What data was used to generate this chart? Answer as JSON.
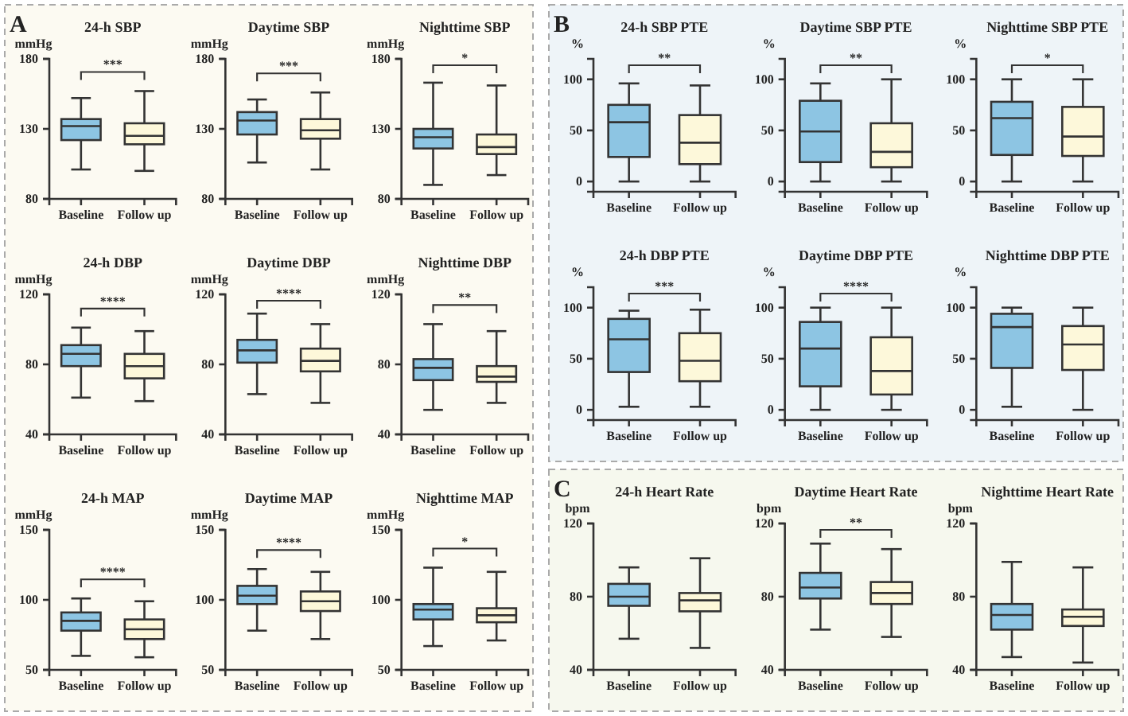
{
  "chart_data": [
    {
      "type": "box",
      "title": "24-h SBP",
      "ylabel": "mmHg",
      "categories": [
        "Baseline",
        "Follow up"
      ],
      "colors": [
        "#8dc5e3",
        "#fdf8da"
      ],
      "ylim": [
        80,
        180
      ],
      "yticks": [
        80,
        130,
        180
      ],
      "annotations": [
        "A",
        "***"
      ],
      "boxes": [
        {
          "low": 101,
          "q1": 122,
          "median": 132,
          "q3": 137,
          "high": 152
        },
        {
          "low": 100,
          "q1": 119,
          "median": 125,
          "q3": 134,
          "high": 157
        }
      ]
    },
    {
      "type": "box",
      "title": "Daytime SBP",
      "ylabel": "mmHg",
      "categories": [
        "Baseline",
        "Follow up"
      ],
      "colors": [
        "#8dc5e3",
        "#fdf8da"
      ],
      "ylim": [
        80,
        180
      ],
      "yticks": [
        80,
        130,
        180
      ],
      "annotations": [
        "***"
      ],
      "boxes": [
        {
          "low": 106,
          "q1": 126,
          "median": 136,
          "q3": 142,
          "high": 151
        },
        {
          "low": 101,
          "q1": 123,
          "median": 129,
          "q3": 137,
          "high": 156
        }
      ]
    },
    {
      "type": "box",
      "title": "Nighttime SBP",
      "ylabel": "mmHg",
      "categories": [
        "Baseline",
        "Follow up"
      ],
      "colors": [
        "#8dc5e3",
        "#fdf8da"
      ],
      "ylim": [
        80,
        180
      ],
      "yticks": [
        80,
        130,
        180
      ],
      "annotations": [
        "*"
      ],
      "boxes": [
        {
          "low": 90,
          "q1": 116,
          "median": 124,
          "q3": 130,
          "high": 163
        },
        {
          "low": 97,
          "q1": 112,
          "median": 117,
          "q3": 126,
          "high": 161
        }
      ]
    },
    {
      "type": "box",
      "title": "24-h DBP",
      "ylabel": "mmHg",
      "categories": [
        "Baseline",
        "Follow up"
      ],
      "colors": [
        "#8dc5e3",
        "#fdf8da"
      ],
      "ylim": [
        40,
        120
      ],
      "yticks": [
        40,
        80,
        120
      ],
      "annotations": [
        "****"
      ],
      "boxes": [
        {
          "low": 61,
          "q1": 79,
          "median": 86,
          "q3": 91,
          "high": 101
        },
        {
          "low": 59,
          "q1": 72,
          "median": 79,
          "q3": 86,
          "high": 99
        }
      ]
    },
    {
      "type": "box",
      "title": "Daytime DBP",
      "ylabel": "mmHg",
      "categories": [
        "Baseline",
        "Follow up"
      ],
      "colors": [
        "#8dc5e3",
        "#fdf8da"
      ],
      "ylim": [
        40,
        120
      ],
      "yticks": [
        40,
        80,
        120
      ],
      "annotations": [
        "****"
      ],
      "boxes": [
        {
          "low": 63,
          "q1": 81,
          "median": 88,
          "q3": 94,
          "high": 109
        },
        {
          "low": 58,
          "q1": 76,
          "median": 82,
          "q3": 89,
          "high": 103
        }
      ]
    },
    {
      "type": "box",
      "title": "Nighttime DBP",
      "ylabel": "mmHg",
      "categories": [
        "Baseline",
        "Follow up"
      ],
      "colors": [
        "#8dc5e3",
        "#fdf8da"
      ],
      "ylim": [
        40,
        120
      ],
      "yticks": [
        40,
        80,
        120
      ],
      "annotations": [
        "**"
      ],
      "boxes": [
        {
          "low": 54,
          "q1": 71,
          "median": 78,
          "q3": 83,
          "high": 103
        },
        {
          "low": 58,
          "q1": 70,
          "median": 73,
          "q3": 79,
          "high": 99
        }
      ]
    },
    {
      "type": "box",
      "title": "24-h MAP",
      "ylabel": "mmHg",
      "categories": [
        "Baseline",
        "Follow up"
      ],
      "colors": [
        "#8dc5e3",
        "#fdf8da"
      ],
      "ylim": [
        50,
        150
      ],
      "yticks": [
        50,
        100,
        150
      ],
      "annotations": [
        "****"
      ],
      "boxes": [
        {
          "low": 60,
          "q1": 78,
          "median": 85,
          "q3": 91,
          "high": 101
        },
        {
          "low": 59,
          "q1": 72,
          "median": 79,
          "q3": 86,
          "high": 99
        }
      ]
    },
    {
      "type": "box",
      "title": "Daytime MAP",
      "ylabel": "mmHg",
      "categories": [
        "Baseline",
        "Follow up"
      ],
      "colors": [
        "#8dc5e3",
        "#fdf8da"
      ],
      "ylim": [
        50,
        150
      ],
      "yticks": [
        50,
        100,
        150
      ],
      "annotations": [
        "****"
      ],
      "boxes": [
        {
          "low": 78,
          "q1": 97,
          "median": 103,
          "q3": 110,
          "high": 122
        },
        {
          "low": 72,
          "q1": 92,
          "median": 99,
          "q3": 106,
          "high": 120
        }
      ]
    },
    {
      "type": "box",
      "title": "Nighttime MAP",
      "ylabel": "mmHg",
      "categories": [
        "Baseline",
        "Follow up"
      ],
      "colors": [
        "#8dc5e3",
        "#fdf8da"
      ],
      "ylim": [
        50,
        150
      ],
      "yticks": [
        50,
        100,
        150
      ],
      "annotations": [
        "*"
      ],
      "boxes": [
        {
          "low": 67,
          "q1": 86,
          "median": 93,
          "q3": 97,
          "high": 123
        },
        {
          "low": 71,
          "q1": 84,
          "median": 89,
          "q3": 94,
          "high": 120
        }
      ]
    },
    {
      "type": "box",
      "title": "24-h SBP PTE",
      "ylabel": "%",
      "categories": [
        "Baseline",
        "Follow up"
      ],
      "colors": [
        "#8dc5e3",
        "#fdf8da"
      ],
      "ylim": [
        -10,
        120
      ],
      "yticks": [
        0,
        50,
        100
      ],
      "annotations": [
        "B",
        "**"
      ],
      "boxes": [
        {
          "low": 0,
          "q1": 24,
          "median": 58,
          "q3": 75,
          "high": 96
        },
        {
          "low": 0,
          "q1": 17,
          "median": 38,
          "q3": 65,
          "high": 94
        }
      ]
    },
    {
      "type": "box",
      "title": "Daytime SBP PTE",
      "ylabel": "%",
      "categories": [
        "Baseline",
        "Follow up"
      ],
      "colors": [
        "#8dc5e3",
        "#fdf8da"
      ],
      "ylim": [
        -10,
        120
      ],
      "yticks": [
        0,
        50,
        100
      ],
      "annotations": [
        "**"
      ],
      "boxes": [
        {
          "low": 0,
          "q1": 19,
          "median": 49,
          "q3": 79,
          "high": 96
        },
        {
          "low": 0,
          "q1": 14,
          "median": 29,
          "q3": 57,
          "high": 100
        }
      ]
    },
    {
      "type": "box",
      "title": "Nighttime SBP PTE",
      "ylabel": "%",
      "categories": [
        "Baseline",
        "Follow up"
      ],
      "colors": [
        "#8dc5e3",
        "#fdf8da"
      ],
      "ylim": [
        -10,
        120
      ],
      "yticks": [
        0,
        50,
        100
      ],
      "annotations": [
        "*"
      ],
      "boxes": [
        {
          "low": 0,
          "q1": 26,
          "median": 62,
          "q3": 78,
          "high": 100
        },
        {
          "low": 0,
          "q1": 25,
          "median": 44,
          "q3": 73,
          "high": 100
        }
      ]
    },
    {
      "type": "box",
      "title": "24-h DBP PTE",
      "ylabel": "%",
      "categories": [
        "Baseline",
        "Follow up"
      ],
      "colors": [
        "#8dc5e3",
        "#fdf8da"
      ],
      "ylim": [
        -10,
        120
      ],
      "yticks": [
        0,
        50,
        100
      ],
      "annotations": [
        "***"
      ],
      "boxes": [
        {
          "low": 3,
          "q1": 37,
          "median": 69,
          "q3": 89,
          "high": 97
        },
        {
          "low": 3,
          "q1": 28,
          "median": 48,
          "q3": 75,
          "high": 98
        }
      ]
    },
    {
      "type": "box",
      "title": "Daytime DBP PTE",
      "ylabel": "%",
      "categories": [
        "Baseline",
        "Follow up"
      ],
      "colors": [
        "#8dc5e3",
        "#fdf8da"
      ],
      "ylim": [
        -10,
        120
      ],
      "yticks": [
        0,
        50,
        100
      ],
      "annotations": [
        "****"
      ],
      "boxes": [
        {
          "low": 0,
          "q1": 23,
          "median": 60,
          "q3": 86,
          "high": 100
        },
        {
          "low": 0,
          "q1": 15,
          "median": 38,
          "q3": 71,
          "high": 100
        }
      ]
    },
    {
      "type": "box",
      "title": "Nighttime DBP PTE",
      "ylabel": "%",
      "categories": [
        "Baseline",
        "Follow up"
      ],
      "colors": [
        "#8dc5e3",
        "#fdf8da"
      ],
      "ylim": [
        -10,
        120
      ],
      "yticks": [
        0,
        50,
        100
      ],
      "boxes": [
        {
          "low": 3,
          "q1": 41,
          "median": 81,
          "q3": 94,
          "high": 100
        },
        {
          "low": 0,
          "q1": 39,
          "median": 64,
          "q3": 82,
          "high": 100
        }
      ]
    },
    {
      "type": "box",
      "title": "24-h Heart Rate",
      "ylabel": "bpm",
      "categories": [
        "Baseline",
        "Follow up"
      ],
      "colors": [
        "#8dc5e3",
        "#fdf8da"
      ],
      "ylim": [
        40,
        120
      ],
      "yticks": [
        40,
        80,
        120
      ],
      "annotations": [
        "C"
      ],
      "boxes": [
        {
          "low": 57,
          "q1": 75,
          "median": 80,
          "q3": 87,
          "high": 96
        },
        {
          "low": 52,
          "q1": 72,
          "median": 78,
          "q3": 82,
          "high": 101
        }
      ]
    },
    {
      "type": "box",
      "title": "Daytime Heart Rate",
      "ylabel": "bpm",
      "categories": [
        "Baseline",
        "Follow up"
      ],
      "colors": [
        "#8dc5e3",
        "#fdf8da"
      ],
      "ylim": [
        40,
        120
      ],
      "yticks": [
        40,
        80,
        120
      ],
      "annotations": [
        "**"
      ],
      "boxes": [
        {
          "low": 62,
          "q1": 79,
          "median": 85,
          "q3": 93,
          "high": 109
        },
        {
          "low": 58,
          "q1": 76,
          "median": 82,
          "q3": 88,
          "high": 106
        }
      ]
    },
    {
      "type": "box",
      "title": "Nighttime Heart Rate",
      "ylabel": "bpm",
      "categories": [
        "Baseline",
        "Follow up"
      ],
      "colors": [
        "#8dc5e3",
        "#fdf8da"
      ],
      "ylim": [
        40,
        120
      ],
      "yticks": [
        40,
        80,
        120
      ],
      "boxes": [
        {
          "low": 47,
          "q1": 62,
          "median": 70,
          "q3": 76,
          "high": 99
        },
        {
          "low": 44,
          "q1": 64,
          "median": 69,
          "q3": 73,
          "high": 96
        }
      ]
    }
  ]
}
